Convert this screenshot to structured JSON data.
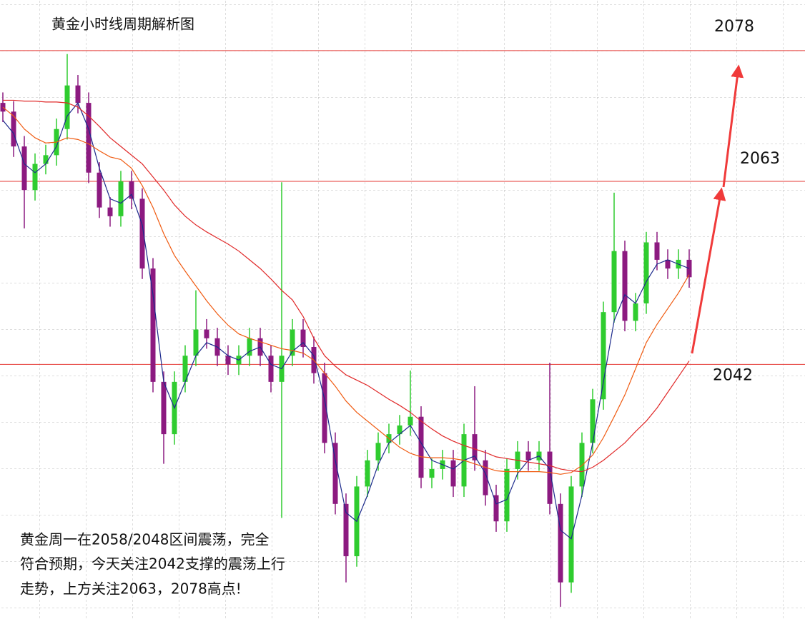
{
  "chart_data": {
    "type": "candlestick",
    "title": "黄金小时线周期解析图",
    "annotation": [
      "黄金周一在2058/2048区间震荡，完全",
      "符合预期，今天关注2042支撑的震荡上行",
      "走势，上方关注2063，2078高点!"
    ],
    "ylim": [
      2012.8,
      2083.8
    ],
    "up_color": "#2fcc2f",
    "down_color": "#8c1a80",
    "open": [
      2072,
      2071,
      2067,
      2062,
      2065,
      2066,
      2069,
      2074,
      2072,
      2064,
      2060,
      2059,
      2063,
      2061,
      2053,
      2040,
      2034,
      2040,
      2043,
      2046,
      2045,
      2043,
      2042,
      2043,
      2045,
      2043,
      2040,
      2043,
      2046,
      2044,
      2041,
      2033,
      2026,
      2020,
      2028,
      2031,
      2033,
      2034,
      2035,
      2036,
      2029,
      2030,
      2031,
      2028,
      2034,
      2031,
      2027,
      2024,
      2030,
      2032,
      2031,
      2032,
      2026,
      2017,
      2028,
      2033,
      2038,
      2048,
      2055,
      2047,
      2049,
      2056,
      2054,
      2053,
      2054
    ],
    "high": [
      2073.2,
      2072.2,
      2068.2,
      2066.2,
      2067.2,
      2070.2,
      2077.6,
      2075.2,
      2073.2,
      2065.2,
      2061.2,
      2064.2,
      2064.2,
      2062.2,
      2054.2,
      2041.2,
      2041.2,
      2044.2,
      2050.5,
      2047.2,
      2046.2,
      2044.2,
      2044.2,
      2046.2,
      2046.2,
      2044.2,
      2062.9,
      2047.2,
      2047.2,
      2045.2,
      2042.2,
      2034.2,
      2027.2,
      2029.2,
      2032.2,
      2034.2,
      2035.2,
      2036.2,
      2041.3,
      2037.2,
      2031.2,
      2032.2,
      2032.2,
      2035.2,
      2039.5,
      2032.2,
      2028.2,
      2031.2,
      2033.2,
      2033.2,
      2033.2,
      2042.2,
      2027.2,
      2029.2,
      2034.2,
      2039.2,
      2049.2,
      2061.7,
      2056.2,
      2050.2,
      2057.2,
      2057.2,
      2055.2,
      2055.2,
      2055.2
    ],
    "low": [
      2069.8,
      2065.8,
      2057.6,
      2060.8,
      2063.8,
      2064.8,
      2067.8,
      2070.8,
      2062.8,
      2058.8,
      2057.8,
      2057.8,
      2059.8,
      2051.8,
      2038.8,
      2030.6,
      2032.8,
      2038.8,
      2041.8,
      2043.8,
      2041.8,
      2040.8,
      2040.8,
      2041.8,
      2041.8,
      2038.8,
      2024.4,
      2041.8,
      2042.8,
      2039.8,
      2031.8,
      2024.8,
      2017.0,
      2018.8,
      2026.8,
      2029.8,
      2031.8,
      2032.8,
      2033.8,
      2027.8,
      2027.8,
      2028.8,
      2026.8,
      2026.8,
      2029.8,
      2025.8,
      2022.8,
      2022.8,
      2028.8,
      2029.8,
      2029.8,
      2024.8,
      2014.2,
      2015.8,
      2026.8,
      2031.8,
      2036.8,
      2046.8,
      2045.8,
      2045.8,
      2047.8,
      2052.8,
      2051.8,
      2051.8,
      2050.8
    ],
    "close": [
      2071,
      2067,
      2062,
      2065,
      2066,
      2069,
      2074,
      2072,
      2064,
      2060,
      2059,
      2063,
      2061,
      2053,
      2040,
      2034,
      2040,
      2043,
      2046,
      2045,
      2043,
      2042,
      2043,
      2045,
      2043,
      2040,
      2043,
      2046,
      2044,
      2041,
      2033,
      2026,
      2020,
      2028,
      2031,
      2033,
      2034,
      2035,
      2036,
      2029,
      2030,
      2031,
      2028,
      2034,
      2031,
      2027,
      2024,
      2030,
      2032,
      2031,
      2032,
      2026,
      2017,
      2028,
      2033,
      2038,
      2048,
      2055,
      2047,
      2049,
      2056,
      2054,
      2053,
      2054,
      2052
    ],
    "lines": [
      {
        "color": "#1c2a8c",
        "values": [
          2070,
          2068.5,
          2065,
          2064,
          2065,
          2067,
          2070.5,
          2072,
          2069,
          2064.5,
          2061,
          2060.5,
          2061.5,
          2058,
          2050,
          2040,
          2037,
          2040,
          2043,
          2044.5,
          2044,
          2043,
          2042.5,
          2043.5,
          2044,
          2042,
          2041.5,
          2043.5,
          2044.5,
          2043,
          2038,
          2031,
          2025,
          2024,
          2027,
          2030.5,
          2033,
          2034,
          2035,
          2033,
          2031,
          2030.5,
          2030,
          2031,
          2031.5,
          2029.5,
          2026,
          2026.5,
          2029.5,
          2031,
          2031.5,
          2030,
          2023,
          2022,
          2027,
          2033,
          2040,
          2047,
          2050,
          2049,
          2051.5,
          2053.5,
          2054,
          2053.5,
          2053
        ]
      },
      {
        "color": "#f05a10",
        "values": [
          2071.5,
          2070.5,
          2069.0,
          2068.0,
          2067.4,
          2067.5,
          2068.0,
          2067.8,
          2067.3,
          2066.5,
          2065.8,
          2065.5,
          2064.5,
          2062.5,
          2060.0,
          2057.0,
          2054.5,
          2052.7,
          2051.0,
          2049.3,
          2047.8,
          2046.5,
          2045.5,
          2045.0,
          2044.6,
          2044.2,
          2043.8,
          2043.6,
          2043.3,
          2042.5,
          2041.0,
          2039.5,
          2037.8,
          2036.5,
          2035.5,
          2034.5,
          2033.5,
          2032.5,
          2031.8,
          2031.4,
          2031.3,
          2031.3,
          2031.2,
          2031.0,
          2030.6,
          2030.2,
          2029.8,
          2029.7,
          2029.7,
          2029.7,
          2029.7,
          2029.6,
          2029.4,
          2029.6,
          2030.4,
          2031.6,
          2033.6,
          2036.0,
          2038.5,
          2041.5,
          2044.5,
          2046.6,
          2048.4,
          2050.2,
          2052.3
        ]
      },
      {
        "color": "#e02828",
        "values": [
          2072.3,
          2072.3,
          2072.2,
          2072.2,
          2072.1,
          2072.1,
          2072.0,
          2071.5,
          2070.5,
          2069.3,
          2068.0,
          2067.0,
          2066.0,
          2065.0,
          2063.5,
          2062.0,
          2060.3,
          2059.0,
          2058.0,
          2057.2,
          2056.5,
          2055.8,
          2055.0,
          2054.0,
          2053.0,
          2051.8,
          2050.5,
          2049.4,
          2047.5,
          2045.0,
          2043.0,
          2041.8,
          2040.8,
          2040.2,
          2039.6,
          2038.8,
          2038.0,
          2037.3,
          2036.5,
          2035.5,
          2034.6,
          2033.8,
          2033.2,
          2032.7,
          2032.3,
          2031.9,
          2031.4,
          2031.2,
          2031.0,
          2030.8,
          2030.6,
          2030.4,
          2030.0,
          2029.8,
          2029.7,
          2030.2,
          2031.0,
          2032.0,
          2033.0,
          2034.3,
          2035.5,
          2037.0,
          2038.8,
          2040.6,
          2042.4
        ]
      }
    ],
    "levels": {
      "color": "#e53935",
      "values": [
        2078,
        2063,
        2042
      ]
    }
  }
}
